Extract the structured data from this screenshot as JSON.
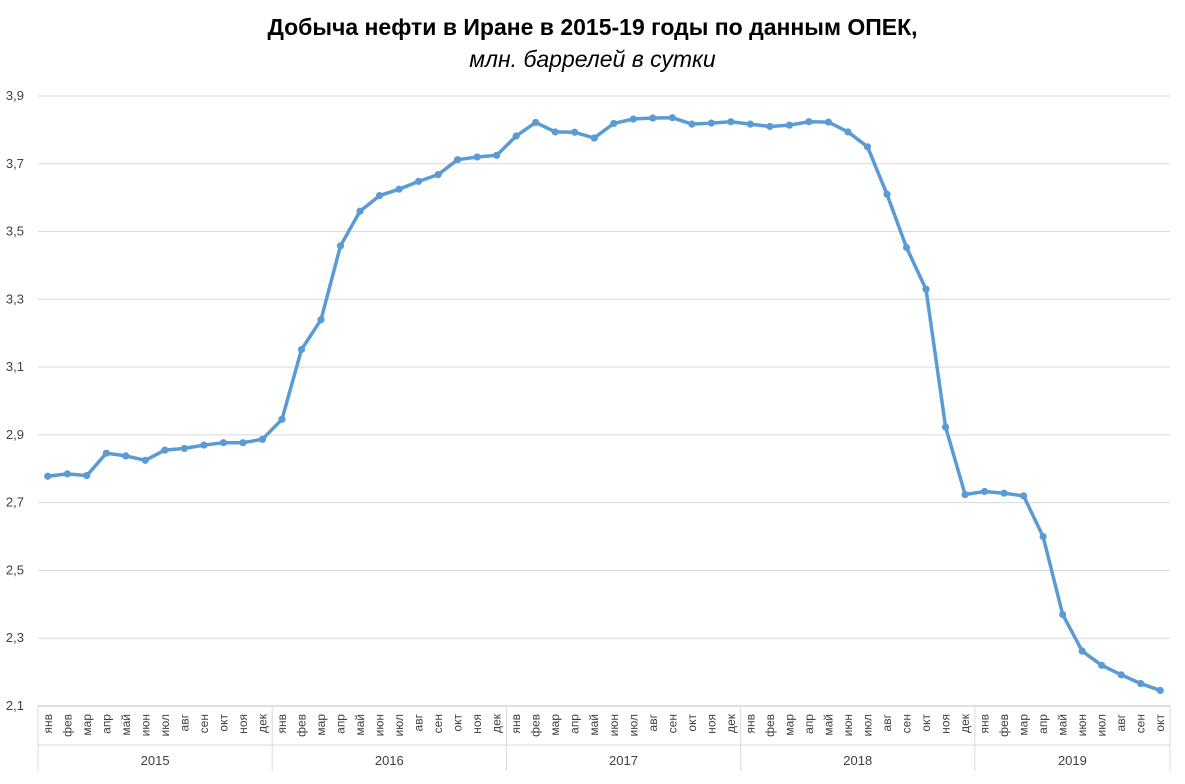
{
  "chart_data": {
    "type": "line",
    "title": "Добыча нефти в Иране в 2015-19 годы по данным ОПЕК,",
    "subtitle": "млн. баррелей в сутки",
    "ylim": [
      2.1,
      3.9
    ],
    "yticks": [
      "2,1",
      "2,3",
      "2,5",
      "2,7",
      "2,9",
      "3,1",
      "3,3",
      "3,5",
      "3,7",
      "3,9"
    ],
    "grid": true,
    "months": [
      "янв",
      "фев",
      "мар",
      "апр",
      "май",
      "июн",
      "июл",
      "авг",
      "сен",
      "окт",
      "ноя",
      "дек"
    ],
    "years": [
      "2015",
      "2016",
      "2017",
      "2018",
      "2019"
    ],
    "color": "#5b9bd5",
    "values": [
      2.778,
      2.785,
      2.78,
      2.846,
      2.838,
      2.825,
      2.855,
      2.86,
      2.87,
      2.877,
      2.877,
      2.887,
      2.946,
      3.152,
      3.24,
      3.458,
      3.56,
      3.606,
      3.625,
      3.648,
      3.668,
      3.712,
      3.72,
      3.725,
      3.782,
      3.822,
      3.794,
      3.793,
      3.776,
      3.819,
      3.832,
      3.835,
      3.836,
      3.817,
      3.82,
      3.824,
      3.817,
      3.81,
      3.814,
      3.824,
      3.823,
      3.794,
      3.75,
      3.61,
      3.453,
      3.33,
      2.923,
      2.724,
      2.733,
      2.728,
      2.72,
      2.6,
      2.37,
      2.262,
      2.22,
      2.192,
      2.166,
      2.146
    ]
  }
}
